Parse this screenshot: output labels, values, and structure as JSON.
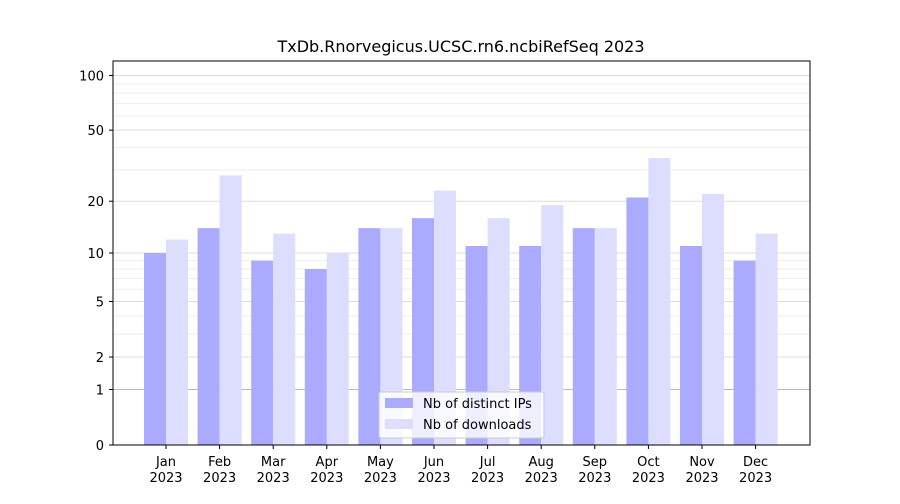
{
  "chart_data": {
    "type": "bar",
    "title": "TxDb.Rnorvegicus.UCSC.rn6.ncbiRefSeq 2023",
    "xlabel": "",
    "ylabel": "",
    "y_scale": "log(1+y)",
    "ylim": [
      0,
      120
    ],
    "y_ticks": [
      0,
      1,
      2,
      5,
      10,
      20,
      50,
      100
    ],
    "grid": "horizontal",
    "legend_position": "bottom-center",
    "categories": [
      {
        "month": "Jan",
        "year": "2023"
      },
      {
        "month": "Feb",
        "year": "2023"
      },
      {
        "month": "Mar",
        "year": "2023"
      },
      {
        "month": "Apr",
        "year": "2023"
      },
      {
        "month": "May",
        "year": "2023"
      },
      {
        "month": "Jun",
        "year": "2023"
      },
      {
        "month": "Jul",
        "year": "2023"
      },
      {
        "month": "Aug",
        "year": "2023"
      },
      {
        "month": "Sep",
        "year": "2023"
      },
      {
        "month": "Oct",
        "year": "2023"
      },
      {
        "month": "Nov",
        "year": "2023"
      },
      {
        "month": "Dec",
        "year": "2023"
      }
    ],
    "series": [
      {
        "name": "Nb of distinct IPs",
        "color": "#aaaaff",
        "values": [
          10,
          14,
          9,
          8,
          14,
          16,
          11,
          11,
          14,
          21,
          11,
          9
        ]
      },
      {
        "name": "Nb of downloads",
        "color": "#ddddff",
        "values": [
          12,
          28,
          13,
          10,
          14,
          23,
          16,
          19,
          14,
          35,
          22,
          13
        ]
      }
    ]
  }
}
